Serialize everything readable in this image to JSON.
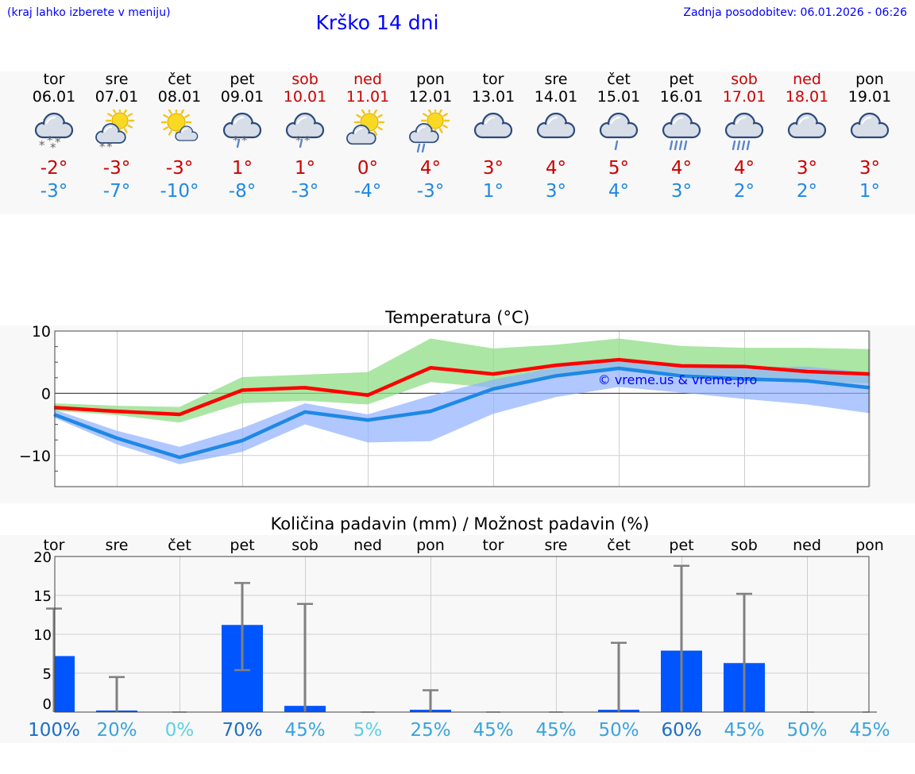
{
  "header": {
    "menu_note": "(kraj lahko izberete v meniju)",
    "title": "Krško 14 dni",
    "last_update": "Zadnja posodobitev: 06.01.2026 - 06:26"
  },
  "colors": {
    "title_blue": "#0000ff",
    "max_red": "#cc0000",
    "min_blue": "#1e88e5",
    "precip_bar": "#0055ff",
    "grid": "#bbbbbb"
  },
  "forecast": [
    {
      "day": "tor",
      "date": "06.01",
      "icon": "cloud-snow-icon",
      "max": "-2°",
      "min": "-3°",
      "weekend": false
    },
    {
      "day": "sre",
      "date": "07.01",
      "icon": "sun-cloud-snow-icon",
      "max": "-3°",
      "min": "-7°",
      "weekend": false
    },
    {
      "day": "čet",
      "date": "08.01",
      "icon": "sun-small-cloud-icon",
      "max": "-3°",
      "min": "-10°",
      "weekend": false
    },
    {
      "day": "pet",
      "date": "09.01",
      "icon": "cloud-sleet-icon",
      "max": "1°",
      "min": "-8°",
      "weekend": false
    },
    {
      "day": "sob",
      "date": "10.01",
      "icon": "cloud-sleet-icon",
      "max": "1°",
      "min": "-3°",
      "weekend": true
    },
    {
      "day": "ned",
      "date": "11.01",
      "icon": "sun-cloud-icon",
      "max": "0°",
      "min": "-4°",
      "weekend": true
    },
    {
      "day": "pon",
      "date": "12.01",
      "icon": "sun-cloud-rain-icon",
      "max": "4°",
      "min": "-3°",
      "weekend": false
    },
    {
      "day": "tor",
      "date": "13.01",
      "icon": "cloud-icon",
      "max": "3°",
      "min": "1°",
      "weekend": false
    },
    {
      "day": "sre",
      "date": "14.01",
      "icon": "cloud-icon",
      "max": "4°",
      "min": "3°",
      "weekend": false
    },
    {
      "day": "čet",
      "date": "15.01",
      "icon": "cloud-light-rain-icon",
      "max": "5°",
      "min": "4°",
      "weekend": false
    },
    {
      "day": "pet",
      "date": "16.01",
      "icon": "cloud-rain-icon",
      "max": "4°",
      "min": "3°",
      "weekend": false
    },
    {
      "day": "sob",
      "date": "17.01",
      "icon": "cloud-rain-icon",
      "max": "4°",
      "min": "2°",
      "weekend": true
    },
    {
      "day": "ned",
      "date": "18.01",
      "icon": "cloud-icon",
      "max": "3°",
      "min": "2°",
      "weekend": true
    },
    {
      "day": "pon",
      "date": "19.01",
      "icon": "cloud-icon",
      "max": "3°",
      "min": "1°",
      "weekend": false
    }
  ],
  "chart_data": [
    {
      "type": "line",
      "title": "Temperatura (°C)",
      "watermark": "© vreme.us & vreme.pro",
      "ylim": [
        -15,
        10
      ],
      "yticks": [
        10,
        0,
        -10
      ],
      "ytick_labels": [
        "10",
        "0",
        "−10"
      ],
      "x": [
        0,
        1,
        2,
        3,
        4,
        5,
        6,
        7,
        8,
        9,
        10,
        11,
        12,
        13
      ],
      "series": [
        {
          "name": "max",
          "color": "#ff0000",
          "values": [
            -2.3,
            -2.9,
            -3.4,
            0.5,
            0.9,
            -0.3,
            4.1,
            3.1,
            4.5,
            5.4,
            4.4,
            4.3,
            3.5,
            3.1
          ],
          "band_low": [
            -2.8,
            -3.5,
            -4.7,
            -1.6,
            -1.2,
            -1.8,
            1.8,
            0.9,
            2.5,
            3.8,
            3.2,
            2.6,
            1.9,
            1.6
          ],
          "band_high": [
            -1.6,
            -2.0,
            -2.2,
            2.6,
            3.0,
            3.4,
            8.8,
            7.2,
            7.8,
            8.8,
            7.6,
            7.3,
            7.3,
            7.1
          ],
          "band_color": "#8fdd86"
        },
        {
          "name": "min",
          "color": "#1e88e5",
          "values": [
            -3.4,
            -7.2,
            -10.3,
            -7.6,
            -3.0,
            -4.3,
            -2.9,
            0.7,
            2.8,
            4.0,
            2.8,
            2.3,
            2.0,
            0.9
          ],
          "band_low": [
            -3.9,
            -8.2,
            -11.4,
            -9.4,
            -5.0,
            -7.9,
            -7.7,
            -3.3,
            -0.6,
            1.0,
            0.1,
            -0.9,
            -1.8,
            -3.2
          ],
          "band_high": [
            -2.6,
            -6.0,
            -8.6,
            -5.6,
            -1.6,
            -3.4,
            -0.4,
            2.2,
            4.2,
            5.6,
            4.6,
            4.2,
            4.3,
            3.3
          ],
          "band_color": "#8eb0ff"
        }
      ]
    },
    {
      "type": "bar",
      "title": "Količina padavin (mm) / Možnost padavin (%)",
      "ylim": [
        0,
        20
      ],
      "yticks": [
        0,
        5,
        10,
        15,
        20
      ],
      "categories": [
        "tor",
        "sre",
        "čet",
        "pet",
        "sob",
        "ned",
        "pon",
        "tor",
        "sre",
        "čet",
        "pet",
        "sob",
        "ned",
        "pon"
      ],
      "values": [
        7.2,
        0.2,
        0.0,
        11.2,
        0.8,
        0.0,
        0.3,
        0.0,
        0.0,
        0.3,
        7.9,
        6.3,
        0.0,
        0.0
      ],
      "error_low": [
        0.0,
        0.0,
        0.0,
        5.4,
        0.0,
        0.0,
        0.0,
        0.0,
        0.0,
        0.0,
        0.0,
        0.0,
        0.0,
        0.0
      ],
      "error_high": [
        13.3,
        4.5,
        0.0,
        16.6,
        13.9,
        0.0,
        2.8,
        0.0,
        0.0,
        8.9,
        18.8,
        15.2,
        0.0,
        0.0
      ],
      "probability_labels": [
        "100%",
        "20%",
        "0%",
        "70%",
        "45%",
        "5%",
        "25%",
        "45%",
        "45%",
        "50%",
        "60%",
        "45%",
        "50%",
        "45%"
      ],
      "probability_colors": [
        "#1a6ec8",
        "#3aa4dc",
        "#5ad0e6",
        "#1a6ec8",
        "#3aa4dc",
        "#5ad0e6",
        "#3aa4dc",
        "#3aa4dc",
        "#3aa4dc",
        "#3aa4dc",
        "#1a6ec8",
        "#3aa4dc",
        "#3aa4dc",
        "#3aa4dc"
      ]
    }
  ]
}
